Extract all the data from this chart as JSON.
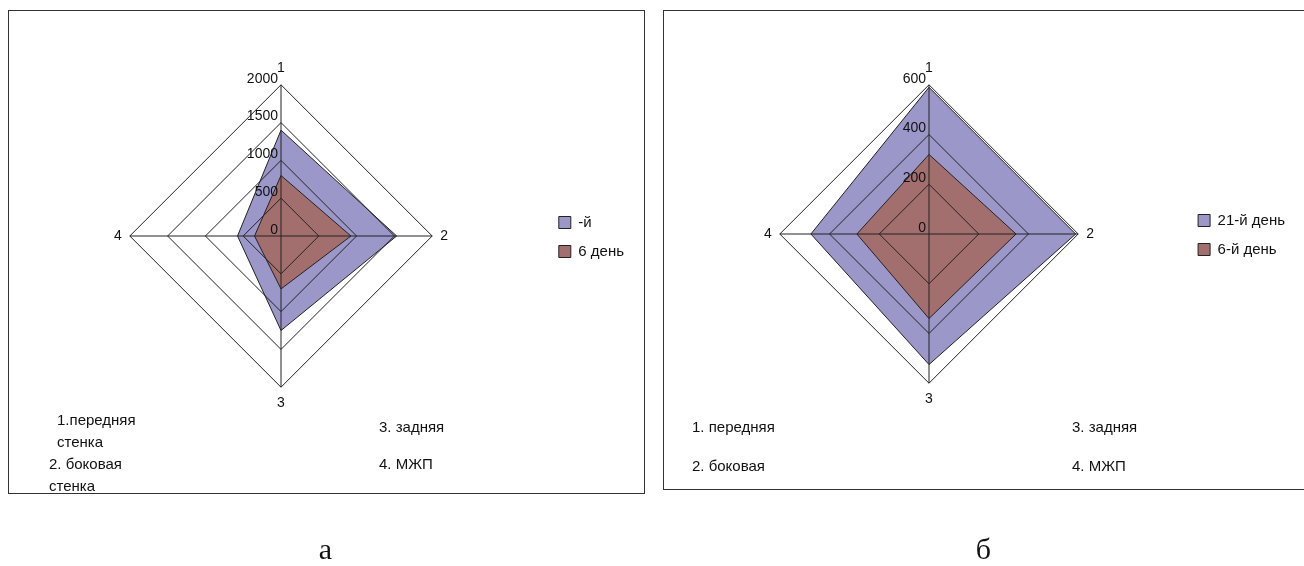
{
  "chart_data": [
    {
      "type": "radar",
      "categories": [
        "1",
        "2",
        "3",
        "4"
      ],
      "series": [
        {
          "name": "-й",
          "color": "#9b97c9",
          "values": [
            1400,
            1530,
            1250,
            575
          ]
        },
        {
          "name": "6 день",
          "color": "#a36e6e",
          "values": [
            800,
            925,
            700,
            350
          ]
        }
      ],
      "ylim": [
        0,
        2000
      ],
      "yticks": [
        0,
        500,
        1000,
        1500,
        2000
      ],
      "grid": true,
      "legend": "right",
      "annotations": [
        "1.передняя стенка",
        "2. боковая стенка",
        "3. задняя",
        "4. МЖП",
        "а"
      ]
    },
    {
      "type": "radar",
      "categories": [
        "1",
        "2",
        "3",
        "4"
      ],
      "series": [
        {
          "name": "21-й день",
          "color": "#9b97c9",
          "values": [
            590,
            590,
            525,
            475
          ]
        },
        {
          "name": "6-й день",
          "color": "#a36e6e",
          "values": [
            320,
            350,
            340,
            290
          ]
        }
      ],
      "ylim": [
        0,
        600
      ],
      "yticks": [
        0,
        200,
        400,
        600
      ],
      "grid": true,
      "legend": "right",
      "annotations": [
        "1. передняя",
        "2. боковая",
        "3. задняя",
        "4. МЖП",
        "б"
      ]
    }
  ]
}
